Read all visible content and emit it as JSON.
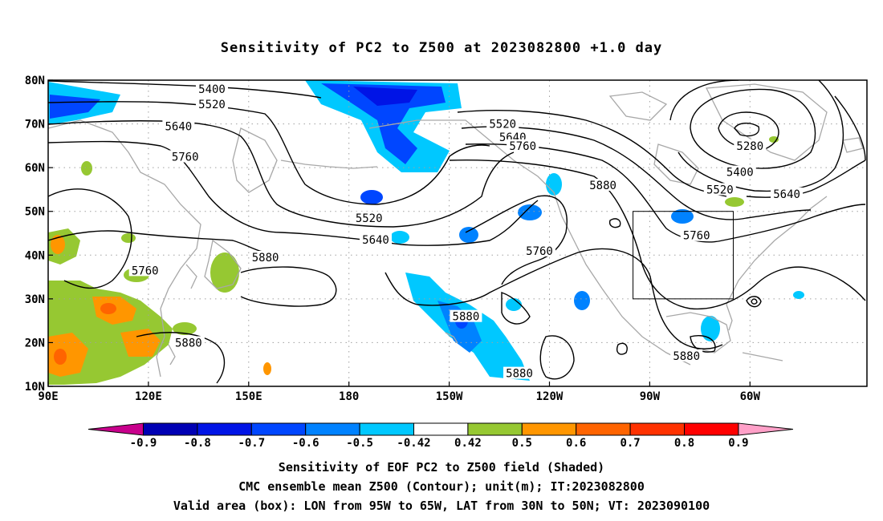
{
  "title": "Sensitivity of PC2 to Z500 at 2023082800 +1.0 day",
  "lon_range": [
    90,
    335
  ],
  "lat_range": [
    10,
    80
  ],
  "lon_ticks": [
    {
      "lon": 90,
      "label": "90E"
    },
    {
      "lon": 120,
      "label": "120E"
    },
    {
      "lon": 150,
      "label": "150E"
    },
    {
      "lon": 180,
      "label": "180"
    },
    {
      "lon": 210,
      "label": "150W"
    },
    {
      "lon": 240,
      "label": "120W"
    },
    {
      "lon": 270,
      "label": "90W"
    },
    {
      "lon": 300,
      "label": "60W"
    }
  ],
  "lat_ticks": [
    {
      "lat": 10,
      "label": "10N"
    },
    {
      "lat": 20,
      "label": "20N"
    },
    {
      "lat": 30,
      "label": "30N"
    },
    {
      "lat": 40,
      "label": "40N"
    },
    {
      "lat": 50,
      "label": "50N"
    },
    {
      "lat": 60,
      "label": "60N"
    },
    {
      "lat": 70,
      "label": "70N"
    },
    {
      "lat": 80,
      "label": "80N"
    }
  ],
  "contour_labels": [
    {
      "text": "5400",
      "lon": 139,
      "lat": 78
    },
    {
      "text": "5520",
      "lon": 139,
      "lat": 74.5
    },
    {
      "text": "5640",
      "lon": 129,
      "lat": 69.5
    },
    {
      "text": "5760",
      "lon": 131,
      "lat": 62.5
    },
    {
      "text": "5760",
      "lon": 119,
      "lat": 36.5
    },
    {
      "text": "5880",
      "lon": 155,
      "lat": 39.5
    },
    {
      "text": "5880",
      "lon": 132,
      "lat": 20
    },
    {
      "text": "5520",
      "lon": 186,
      "lat": 48.5
    },
    {
      "text": "5640",
      "lon": 188,
      "lat": 43.5
    },
    {
      "text": "5880",
      "lon": 215,
      "lat": 26
    },
    {
      "text": "5520",
      "lon": 226,
      "lat": 70
    },
    {
      "text": "5640",
      "lon": 229,
      "lat": 67
    },
    {
      "text": "5760",
      "lon": 232,
      "lat": 65
    },
    {
      "text": "5880",
      "lon": 256,
      "lat": 56
    },
    {
      "text": "5760",
      "lon": 237,
      "lat": 41
    },
    {
      "text": "5880",
      "lon": 231,
      "lat": 13
    },
    {
      "text": "5280",
      "lon": 300,
      "lat": 65
    },
    {
      "text": "5400",
      "lon": 297,
      "lat": 59
    },
    {
      "text": "5520",
      "lon": 291,
      "lat": 55
    },
    {
      "text": "5640",
      "lon": 311,
      "lat": 54
    },
    {
      "text": "5760",
      "lon": 284,
      "lat": 44.5
    },
    {
      "text": "5880",
      "lon": 281,
      "lat": 17
    }
  ],
  "valid_box": {
    "lon_min": 265,
    "lon_max": 295,
    "lat_min": 30,
    "lat_max": 50
  },
  "colorbar": {
    "colors": [
      "#c8008c",
      "#0000b4",
      "#0014e6",
      "#0046ff",
      "#0082ff",
      "#00c8ff",
      "#ffffff",
      "#96c832",
      "#ff9600",
      "#ff6400",
      "#ff3200",
      "#ff0000",
      "#ffa0c8"
    ],
    "labels": [
      "-0.9",
      "-0.8",
      "-0.7",
      "-0.6",
      "-0.5",
      "-0.42",
      "0.42",
      "0.5",
      "0.6",
      "0.7",
      "0.8",
      "0.9"
    ]
  },
  "captions": [
    "Sensitivity of EOF PC2 to Z500 field (Shaded)",
    "CMC ensemble mean Z500 (Contour); unit(m); IT:2023082800",
    "Valid area (box): LON from 95W to 65W, LAT from 30N to 50N; VT: 2023090100"
  ],
  "colors": {
    "frame": "#000000",
    "grid": "#a0a0a0",
    "coast": "#a8a8a8",
    "contour": "#000000"
  }
}
